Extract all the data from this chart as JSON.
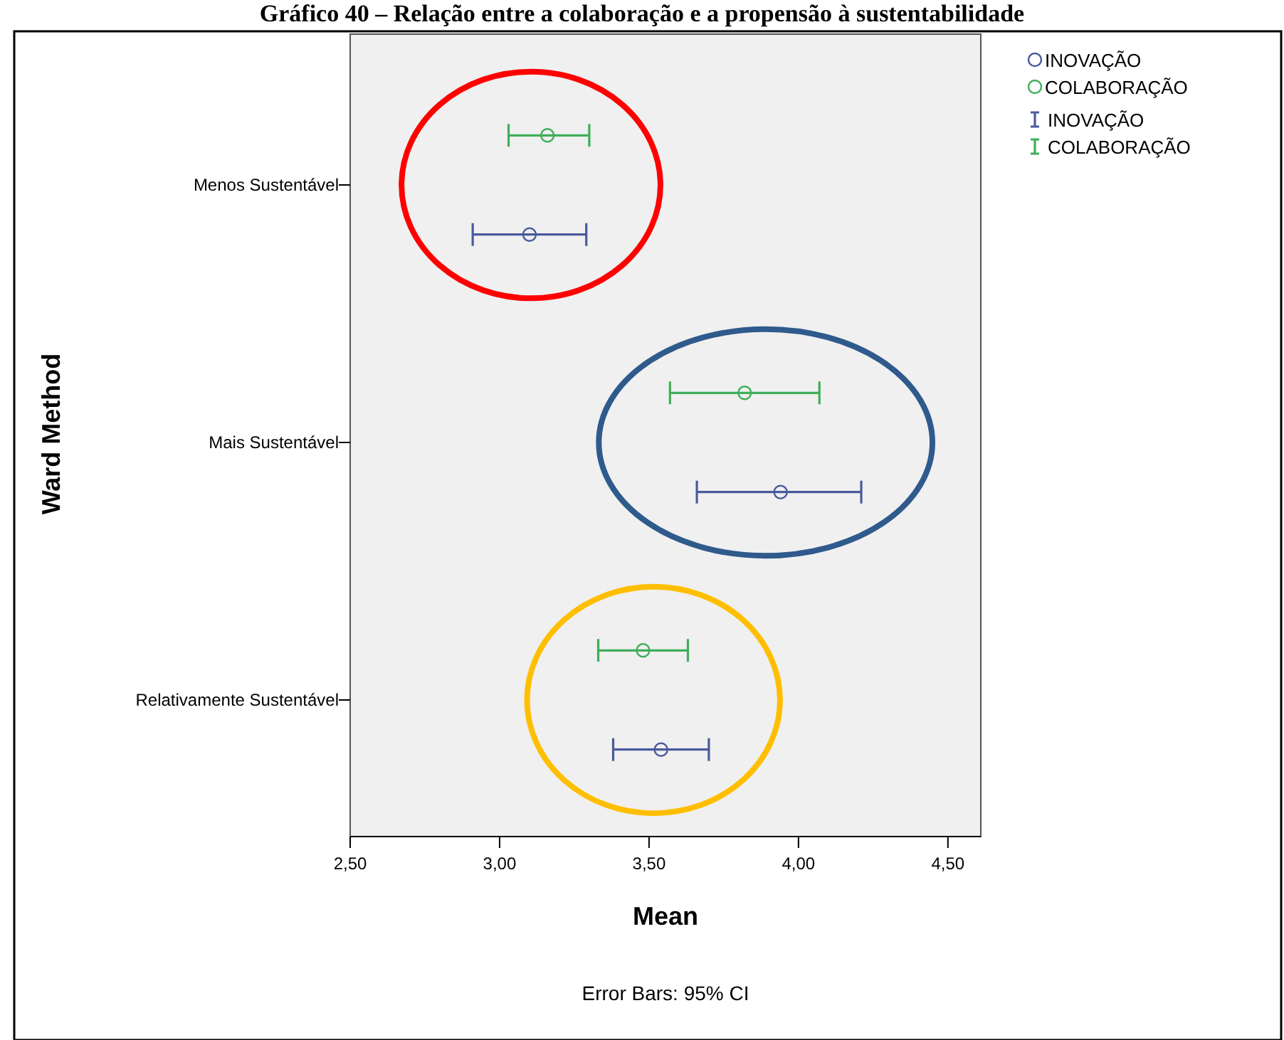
{
  "chart_data": {
    "type": "scatter",
    "title": "Gráfico 40 – Relação entre a colaboração e a propensão à sustentabilidade",
    "orientation": "horizontal",
    "xlabel": "Mean",
    "ylabel": "Ward Method",
    "categories": [
      "Menos Sustentável",
      "Mais Sustentável",
      "Relativamente Sustentável"
    ],
    "series": [
      {
        "name": "INOVAÇÃO",
        "color": "#4a5a9c",
        "values": [
          3.1,
          3.94,
          3.54
        ],
        "errors": [
          [
            2.91,
            3.29
          ],
          [
            3.66,
            4.21
          ],
          [
            3.38,
            3.7
          ]
        ]
      },
      {
        "name": "COLABORAÇÃO",
        "color": "#3fae5a",
        "values": [
          3.16,
          3.82,
          3.48
        ],
        "errors": [
          [
            3.03,
            3.3
          ],
          [
            3.57,
            4.07
          ],
          [
            3.33,
            3.63
          ]
        ]
      }
    ],
    "xlim": [
      2.5,
      4.61
    ],
    "xticks": [
      {
        "value": 2.5,
        "label": "2,50"
      },
      {
        "value": 3,
        "label": "3,00"
      },
      {
        "value": 3.5,
        "label": "3,50"
      },
      {
        "value": 4,
        "label": "4,00"
      },
      {
        "value": 4.5,
        "label": "4,50"
      }
    ],
    "marker": "circle",
    "legend": "top right",
    "annotations": [
      "Error Bars: 95% CI"
    ]
  }
}
